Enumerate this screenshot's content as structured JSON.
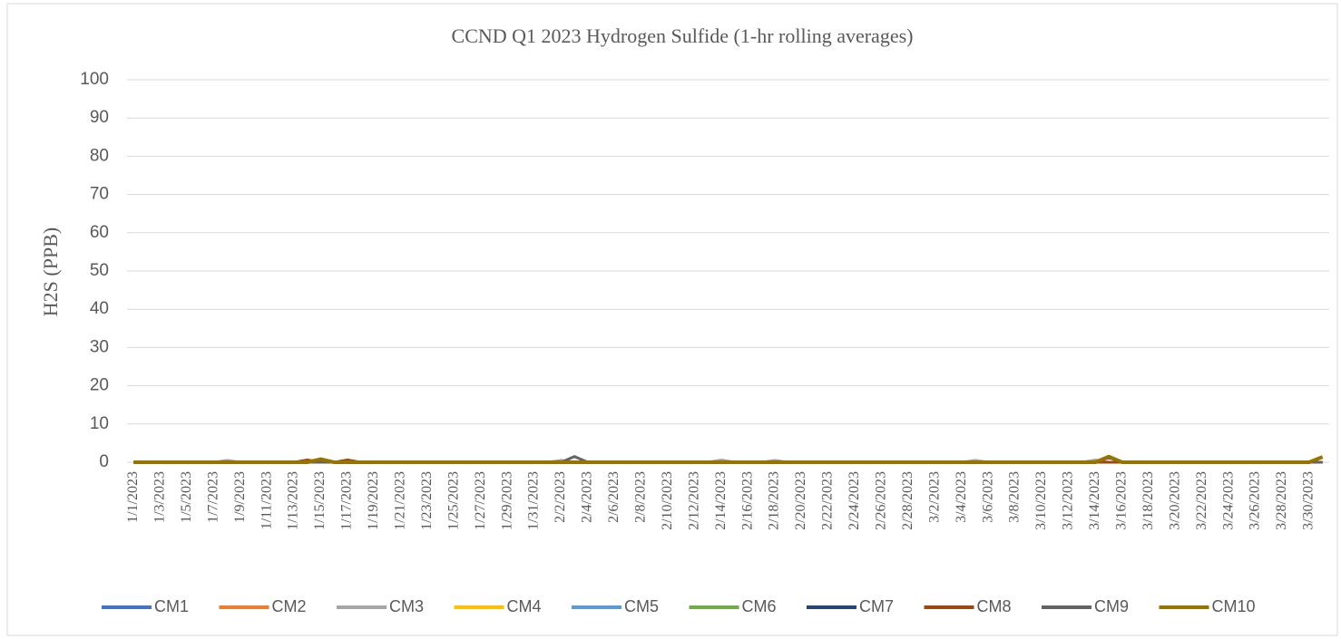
{
  "chart_data": {
    "type": "line",
    "title": "CCND Q1 2023 Hydrogen Sulfide (1-hr rolling averages)",
    "y_label": "H2S (PPB)",
    "categories": [
      "1/1/2023",
      null,
      "1/3/2023",
      null,
      "1/5/2023",
      null,
      "1/7/2023",
      null,
      "1/9/2023",
      null,
      "1/11/2023",
      null,
      "1/13/2023",
      null,
      "1/15/2023",
      null,
      "1/17/2023",
      null,
      "1/19/2023",
      null,
      "1/21/2023",
      null,
      "1/23/2023",
      null,
      "1/25/2023",
      null,
      "1/27/2023",
      null,
      "1/29/2023",
      null,
      "1/31/2023",
      null,
      "2/2/2023",
      null,
      "2/4/2023",
      null,
      "2/6/2023",
      null,
      "2/8/2023",
      null,
      "2/10/2023",
      null,
      "2/12/2023",
      null,
      "2/14/2023",
      null,
      "2/16/2023",
      null,
      "2/18/2023",
      null,
      "2/20/2023",
      null,
      "2/22/2023",
      null,
      "2/24/2023",
      null,
      "2/26/2023",
      null,
      "2/28/2023",
      null,
      "3/2/2023",
      null,
      "3/4/2023",
      null,
      "3/6/2023",
      null,
      "3/8/2023",
      null,
      "3/10/2023",
      null,
      "3/12/2023",
      null,
      "3/14/2023",
      null,
      "3/16/2023",
      null,
      "3/18/2023",
      null,
      "3/20/2023",
      null,
      "3/22/2023",
      null,
      "3/24/2023",
      null,
      "3/26/2023",
      null,
      "3/28/2023",
      null,
      "3/30/2023",
      null
    ],
    "series": [
      {
        "name": "CM1",
        "color": "#4472c4",
        "values": [
          0,
          0,
          0,
          0,
          0,
          0,
          0,
          0,
          0,
          0,
          0,
          0,
          0,
          0,
          0,
          0,
          0,
          0,
          0,
          0,
          0,
          0,
          0,
          0,
          0,
          0,
          0,
          0,
          0,
          0,
          0,
          0,
          0,
          0,
          0,
          0,
          0,
          0,
          0,
          0,
          0,
          0,
          0,
          0,
          0,
          0,
          0,
          0,
          0,
          0,
          0,
          0,
          0,
          0,
          0,
          0,
          0,
          0,
          0,
          0,
          0,
          0,
          0,
          0,
          0,
          0,
          0,
          0,
          0,
          0,
          0,
          0,
          0,
          0,
          0,
          0,
          0,
          0,
          0,
          0,
          0,
          0,
          0,
          0,
          0,
          0,
          0,
          0,
          0,
          0
        ]
      },
      {
        "name": "CM2",
        "color": "#ed7d31",
        "values": [
          0,
          0,
          0,
          0,
          0,
          0,
          0,
          0,
          0,
          0,
          0,
          0,
          0,
          0,
          0,
          0,
          0,
          0,
          0,
          0,
          0,
          0,
          0,
          0,
          0,
          0,
          0,
          0,
          0,
          0,
          0,
          0,
          0,
          0,
          0,
          0,
          0,
          0,
          0,
          0,
          0,
          0,
          0,
          0,
          0,
          0,
          0,
          0,
          0,
          0,
          0,
          0,
          0,
          0,
          0,
          0,
          0,
          0,
          0,
          0,
          0,
          0,
          0,
          0,
          0,
          0,
          0,
          0,
          0,
          0,
          0,
          0,
          0,
          0,
          0,
          0,
          0,
          0,
          0,
          0,
          0,
          0,
          0,
          0,
          0,
          0,
          0,
          0,
          0,
          0
        ]
      },
      {
        "name": "CM3",
        "color": "#a5a5a5",
        "values": [
          0,
          0,
          0,
          0,
          0,
          0,
          0,
          0.5,
          0,
          0,
          0,
          0,
          0,
          0,
          0,
          0,
          0,
          0,
          0,
          0,
          0,
          0,
          0,
          0,
          0,
          0,
          0,
          0,
          0,
          0,
          0,
          0,
          0.5,
          0,
          0,
          0,
          0,
          0,
          0,
          0,
          0,
          0,
          0,
          0,
          0.6,
          0,
          0,
          0,
          0.5,
          0,
          0,
          0,
          0,
          0,
          0,
          0,
          0,
          0,
          0,
          0,
          0,
          0,
          0,
          0.5,
          0,
          0,
          0,
          0,
          0,
          0,
          0,
          0,
          0.6,
          0,
          0,
          0,
          0,
          0,
          0,
          0,
          0,
          0,
          0,
          0,
          0,
          0,
          0,
          0,
          0,
          0
        ]
      },
      {
        "name": "CM4",
        "color": "#ffc000",
        "values": [
          0,
          0,
          0,
          0,
          0,
          0,
          0,
          0,
          0,
          0,
          0,
          0,
          0,
          0,
          0,
          0,
          0,
          0,
          0,
          0,
          0,
          0,
          0,
          0,
          0,
          0,
          0,
          0,
          0,
          0,
          0,
          0,
          0,
          0,
          0,
          0,
          0,
          0,
          0,
          0,
          0,
          0,
          0,
          0,
          0,
          0,
          0,
          0,
          0,
          0,
          0,
          0,
          0,
          0,
          0,
          0,
          0,
          0,
          0,
          0,
          0,
          0,
          0,
          0,
          0,
          0,
          0,
          0,
          0,
          0,
          0,
          0,
          0,
          0,
          0,
          0,
          0,
          0,
          0,
          0,
          0,
          0,
          0,
          0,
          0,
          0,
          0,
          0,
          0,
          0
        ]
      },
      {
        "name": "CM5",
        "color": "#5b9bd5",
        "values": [
          0,
          0,
          0,
          0,
          0,
          0,
          0,
          0,
          0,
          0,
          0,
          0,
          0,
          0,
          0,
          0,
          0,
          0,
          0,
          0,
          0,
          0,
          0,
          0,
          0,
          0,
          0,
          0,
          0,
          0,
          0,
          0,
          0,
          0,
          0,
          0,
          0,
          0,
          0,
          0,
          0,
          0,
          0,
          0,
          0,
          0,
          0,
          0,
          0,
          0,
          0,
          0,
          0,
          0,
          0,
          0,
          0,
          0,
          0,
          0,
          0,
          0,
          0,
          0,
          0,
          0,
          0,
          0,
          0,
          0,
          0,
          0,
          0,
          0,
          0,
          0,
          0,
          0,
          0,
          0,
          0,
          0,
          0,
          0,
          0,
          0,
          0,
          0,
          0,
          0
        ]
      },
      {
        "name": "CM6",
        "color": "#70ad47",
        "values": [
          0,
          0,
          0,
          0,
          0,
          0,
          0,
          0,
          0,
          0,
          0,
          0,
          0,
          0,
          0,
          0,
          0,
          0,
          0,
          0,
          0,
          0,
          0,
          0,
          0,
          0,
          0,
          0,
          0,
          0,
          0,
          0,
          0,
          0,
          0,
          0,
          0,
          0,
          0,
          0,
          0,
          0,
          0,
          0,
          0,
          0,
          0,
          0,
          0,
          0,
          0,
          0,
          0,
          0,
          0,
          0,
          0,
          0,
          0,
          0,
          0,
          0,
          0,
          0,
          0,
          0,
          0,
          0,
          0,
          0,
          0,
          0,
          0,
          0,
          0,
          0,
          0,
          0,
          0,
          0,
          0,
          0,
          0,
          0,
          0,
          0,
          0,
          0,
          0,
          0
        ]
      },
      {
        "name": "CM7",
        "color": "#264478",
        "values": [
          0,
          0,
          0,
          0,
          0,
          0,
          0,
          0,
          0,
          0,
          0,
          0,
          0,
          0,
          0,
          0,
          0,
          0,
          0,
          0,
          0,
          0,
          0,
          0,
          0,
          0,
          0,
          0,
          0,
          0,
          0,
          0,
          0,
          0,
          0,
          0,
          0,
          0,
          0,
          0,
          0,
          0,
          0,
          0,
          0,
          0,
          0,
          0,
          0,
          0,
          0,
          0,
          0,
          0,
          0,
          0,
          0,
          0,
          0,
          0,
          0,
          0,
          0,
          0,
          0,
          0,
          0,
          0,
          0,
          0,
          0,
          0,
          0,
          0,
          0,
          0,
          0,
          0,
          0,
          0,
          0,
          0,
          0,
          0,
          0,
          0,
          0,
          0,
          0,
          0
        ]
      },
      {
        "name": "CM8",
        "color": "#9e480e",
        "values": [
          0,
          0,
          0,
          0,
          0,
          0,
          0,
          0,
          0,
          0,
          0,
          0,
          0,
          0.6,
          0,
          0,
          0.6,
          0,
          0,
          0,
          0,
          0,
          0,
          0,
          0,
          0,
          0,
          0,
          0,
          0,
          0,
          0,
          0,
          0,
          0,
          0,
          0,
          0,
          0,
          0,
          0,
          0,
          0,
          0,
          0,
          0,
          0,
          0,
          0,
          0,
          0,
          0,
          0,
          0,
          0,
          0,
          0,
          0,
          0,
          0,
          0,
          0,
          0,
          0,
          0,
          0,
          0,
          0,
          0,
          0,
          0,
          0,
          0,
          0,
          0,
          0,
          0,
          0,
          0,
          0,
          0,
          0,
          0,
          0,
          0,
          0,
          0,
          0,
          0,
          0
        ]
      },
      {
        "name": "CM9",
        "color": "#636363",
        "values": [
          0,
          0,
          0,
          0,
          0,
          0,
          0,
          0,
          0,
          0,
          0,
          0,
          0,
          0,
          0,
          0,
          0,
          0,
          0,
          0,
          0,
          0,
          0,
          0,
          0,
          0,
          0,
          0,
          0,
          0,
          0,
          0,
          0,
          1.5,
          0,
          0,
          0,
          0,
          0,
          0,
          0,
          0,
          0,
          0,
          0,
          0,
          0,
          0,
          0,
          0,
          0,
          0,
          0,
          0,
          0,
          0,
          0,
          0,
          0,
          0,
          0,
          0,
          0,
          0,
          0,
          0,
          0,
          0,
          0,
          0,
          0,
          0,
          0,
          1.2,
          0,
          0,
          0,
          0,
          0,
          0,
          0,
          0,
          0,
          0,
          0,
          0,
          0,
          0,
          0,
          0
        ]
      },
      {
        "name": "CM10",
        "color": "#997300",
        "values": [
          0,
          0,
          0,
          0,
          0,
          0,
          0,
          0,
          0,
          0,
          0,
          0,
          0,
          0,
          0.8,
          0,
          0,
          0,
          0,
          0,
          0,
          0,
          0,
          0,
          0,
          0,
          0,
          0,
          0,
          0,
          0,
          0,
          0,
          0,
          0,
          0,
          0,
          0,
          0,
          0,
          0,
          0,
          0,
          0,
          0,
          0,
          0,
          0,
          0,
          0,
          0,
          0,
          0,
          0,
          0,
          0,
          0,
          0,
          0,
          0,
          0,
          0,
          0,
          0,
          0,
          0,
          0,
          0,
          0,
          0,
          0,
          0,
          0,
          1.5,
          0,
          0,
          0,
          0,
          0,
          0,
          0,
          0,
          0,
          0,
          0,
          0,
          0,
          0,
          0,
          1.4
        ]
      }
    ],
    "ylim": [
      0,
      100
    ],
    "yticks": [
      0,
      10,
      20,
      30,
      40,
      50,
      60,
      70,
      80,
      90,
      100
    ],
    "grid": true,
    "legend": "bottom"
  }
}
